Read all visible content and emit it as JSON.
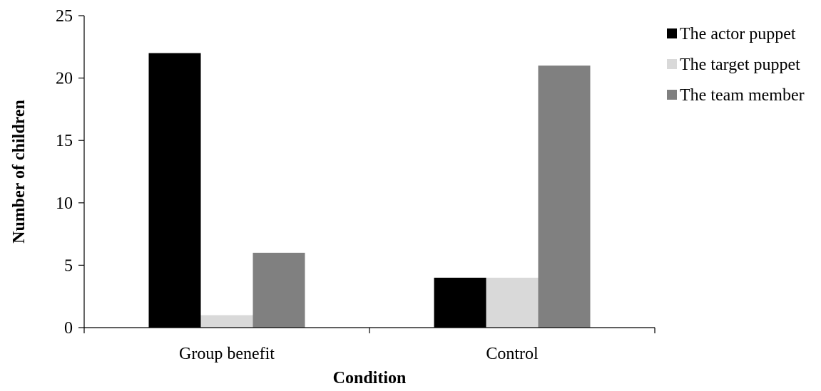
{
  "chart_data": {
    "type": "bar",
    "categories": [
      "Group benefit",
      "Control"
    ],
    "series": [
      {
        "name": "The actor puppet",
        "values": [
          22,
          4
        ],
        "color": "#000000"
      },
      {
        "name": "The target puppet",
        "values": [
          1,
          4
        ],
        "color": "#d9d9d9"
      },
      {
        "name": "The team member",
        "values": [
          6,
          21
        ],
        "color": "#808080"
      }
    ],
    "xlabel": "Condition",
    "ylabel": "Number of children",
    "ylim": [
      0,
      25
    ],
    "yticks": [
      0,
      5,
      10,
      15,
      20,
      25
    ],
    "grid": false,
    "legend_position": "top-right"
  }
}
